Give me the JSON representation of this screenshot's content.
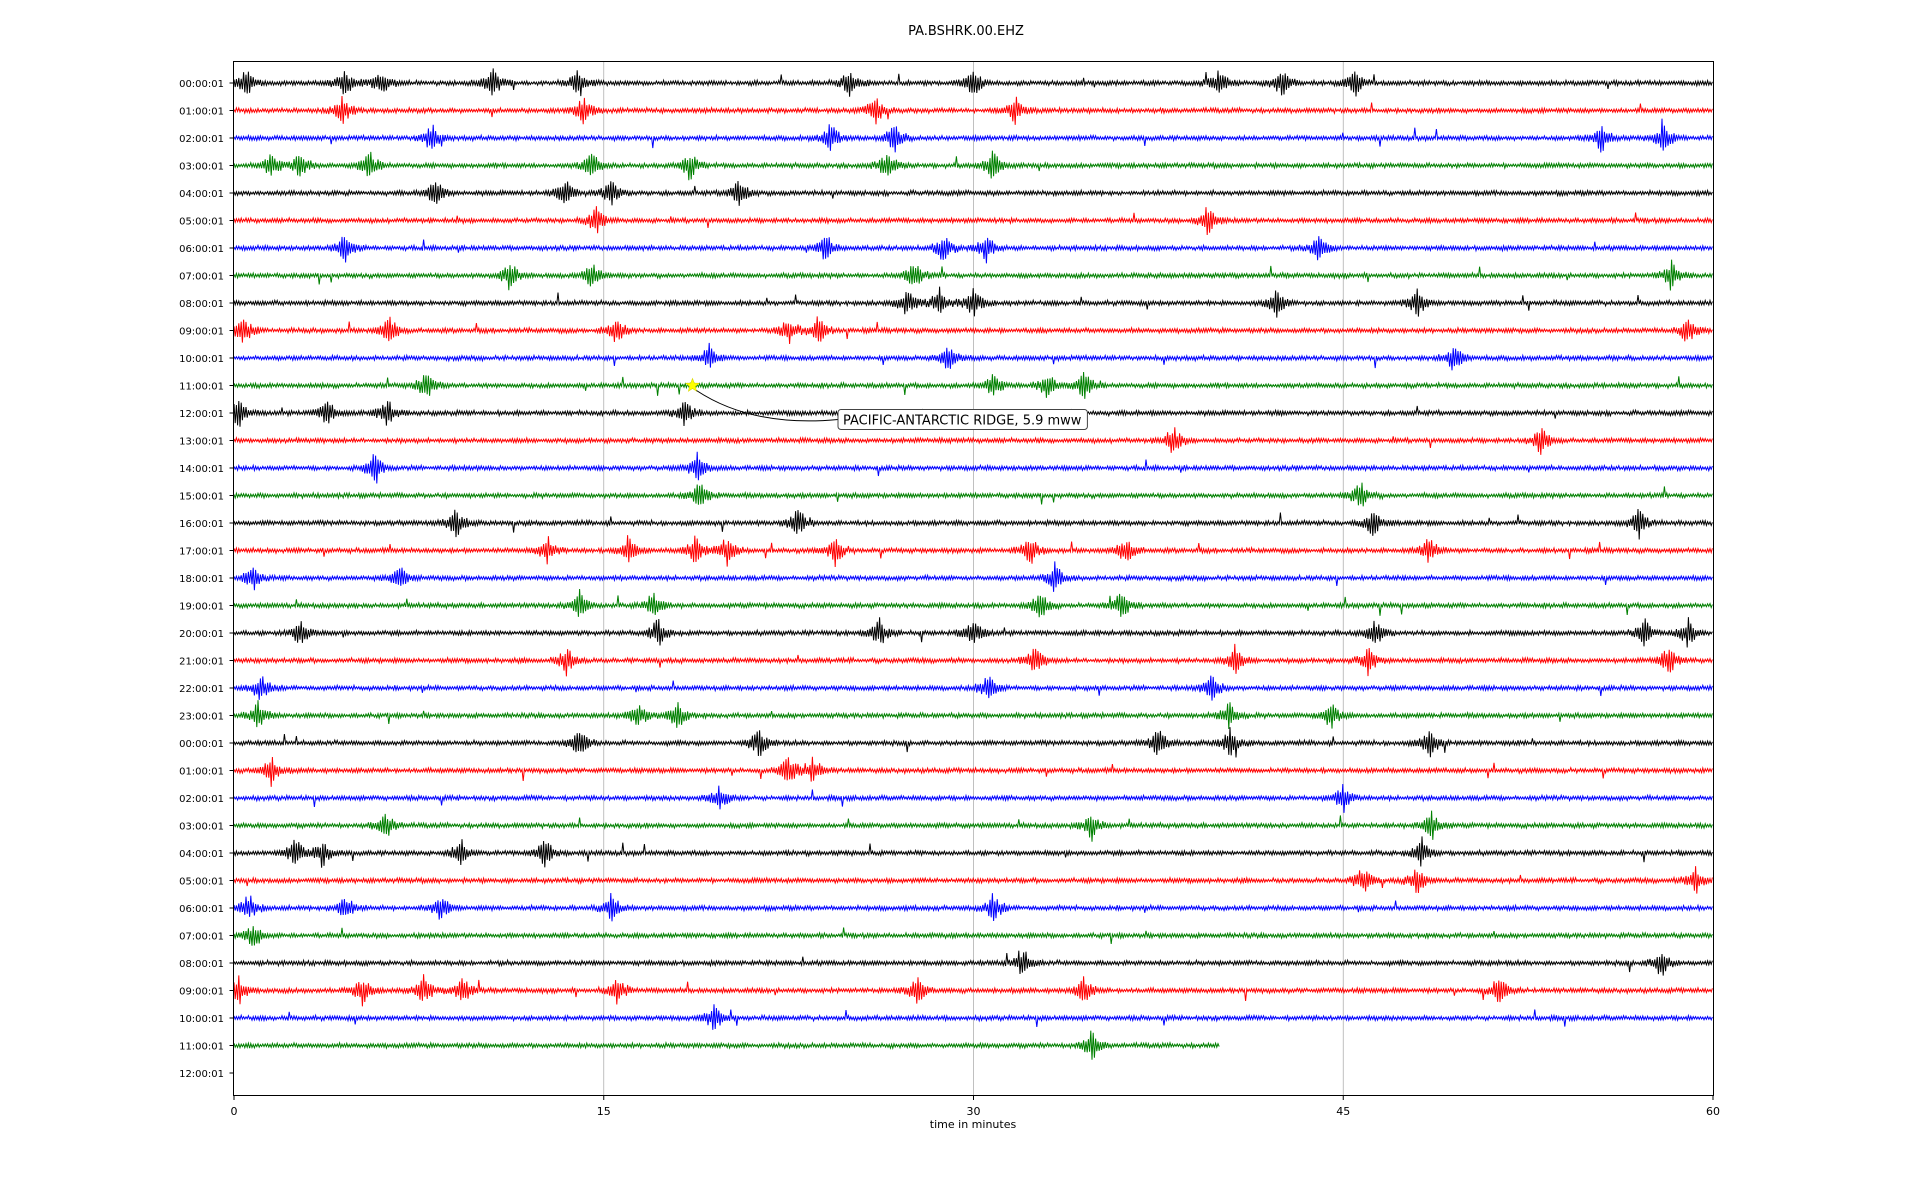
{
  "chart_data": {
    "type": "line",
    "title": "PA.BSHRK.00.EHZ",
    "xlabel": "time in minutes",
    "ylabel": "",
    "xlim": [
      0,
      60
    ],
    "x_ticks": [
      "0",
      "15",
      "30",
      "45",
      "60"
    ],
    "x_tick_values": [
      0,
      15,
      30,
      45,
      60
    ],
    "grid": "vertical lines at 15, 30, 45",
    "row_colors": [
      "#000000",
      "#ff0000",
      "#0000ff",
      "#008000"
    ],
    "row_labels": [
      "00:00:01",
      "01:00:01",
      "02:00:01",
      "03:00:01",
      "04:00:01",
      "05:00:01",
      "06:00:01",
      "07:00:01",
      "08:00:01",
      "09:00:01",
      "10:00:01",
      "11:00:01",
      "12:00:01",
      "13:00:01",
      "14:00:01",
      "15:00:01",
      "16:00:01",
      "17:00:01",
      "18:00:01",
      "19:00:01",
      "20:00:01",
      "21:00:01",
      "22:00:01",
      "23:00:01",
      "00:00:01",
      "01:00:01",
      "02:00:01",
      "03:00:01",
      "04:00:01",
      "05:00:01",
      "06:00:01",
      "07:00:01",
      "08:00:01",
      "09:00:01",
      "10:00:01",
      "11:00:01",
      "12:00:01"
    ],
    "trace_end_minutes": [
      60,
      60,
      60,
      60,
      60,
      60,
      60,
      60,
      60,
      60,
      60,
      60,
      60,
      60,
      60,
      60,
      60,
      60,
      60,
      60,
      60,
      60,
      60,
      60,
      60,
      60,
      60,
      60,
      60,
      60,
      60,
      60,
      60,
      60,
      60,
      40,
      0
    ],
    "bursts": [
      {
        "row": 0,
        "t": [
          0.5,
          4.5,
          6,
          10.5,
          14,
          25,
          30,
          40,
          42.5,
          45.5
        ]
      },
      {
        "row": 1,
        "t": [
          4.4,
          14.2,
          26,
          31.7
        ]
      },
      {
        "row": 2,
        "t": [
          8,
          24.2,
          26.8,
          55.5,
          58
        ]
      },
      {
        "row": 3,
        "t": [
          1.5,
          2.7,
          5.5,
          14.5,
          18.5,
          26.5,
          30.8
        ]
      },
      {
        "row": 4,
        "t": [
          8.2,
          13.5,
          15.3,
          20.5
        ]
      },
      {
        "row": 5,
        "t": [
          14.7,
          39.5
        ]
      },
      {
        "row": 6,
        "t": [
          4.5,
          24,
          28.8,
          30.5,
          44
        ]
      },
      {
        "row": 7,
        "t": [
          11.2,
          14.5,
          27.6,
          58.3
        ]
      },
      {
        "row": 8,
        "t": [
          27.3,
          28.6,
          30,
          42.3,
          48
        ]
      },
      {
        "row": 9,
        "t": [
          0.4,
          6.3,
          15.5,
          22.5,
          23.7,
          59
        ]
      },
      {
        "row": 10,
        "t": [
          19.3,
          29,
          49.5
        ]
      },
      {
        "row": 11,
        "t": [
          7.8,
          30.8,
          33,
          34.5
        ]
      },
      {
        "row": 12,
        "t": [
          0.2,
          3.8,
          6.2,
          18.3
        ]
      },
      {
        "row": 13,
        "t": [
          38.1,
          53
        ]
      },
      {
        "row": 14,
        "t": [
          5.7,
          18.8
        ]
      },
      {
        "row": 15,
        "t": [
          18.9,
          45.7
        ]
      },
      {
        "row": 16,
        "t": [
          9,
          22.9,
          46.2,
          57
        ]
      },
      {
        "row": 17,
        "t": [
          12.7,
          16,
          18.7,
          20,
          24.4,
          32.3,
          36.2,
          48.5
        ]
      },
      {
        "row": 18,
        "t": [
          0.8,
          6.7,
          33.3
        ]
      },
      {
        "row": 19,
        "t": [
          14,
          17,
          32.7,
          36
        ]
      },
      {
        "row": 20,
        "t": [
          2.7,
          17.2,
          26.2,
          30,
          46.3,
          57.2,
          59
        ]
      },
      {
        "row": 21,
        "t": [
          13.5,
          32.5,
          40.6,
          46,
          58.2
        ]
      },
      {
        "row": 22,
        "t": [
          1.1,
          30.6,
          39.7
        ]
      },
      {
        "row": 23,
        "t": [
          1,
          16.4,
          18,
          40.4,
          44.5
        ]
      },
      {
        "row": 24,
        "t": [
          14,
          21.3,
          37.5,
          40.4,
          48.5
        ]
      },
      {
        "row": 25,
        "t": [
          1.5,
          22.5,
          23.5
        ]
      },
      {
        "row": 26,
        "t": [
          19.7,
          45
        ]
      },
      {
        "row": 27,
        "t": [
          6.2,
          34.8,
          48.6
        ]
      },
      {
        "row": 28,
        "t": [
          2.5,
          3.6,
          9.2,
          12.6,
          48.2
        ]
      },
      {
        "row": 29,
        "t": [
          45.8,
          48,
          59.3
        ]
      },
      {
        "row": 30,
        "t": [
          0.6,
          4.5,
          8.4,
          15.3,
          30.8
        ]
      },
      {
        "row": 31,
        "t": [
          0.8
        ]
      },
      {
        "row": 32,
        "t": [
          32,
          57.9
        ]
      },
      {
        "row": 33,
        "t": [
          0.2,
          5.2,
          7.7,
          9.3,
          15.6,
          27.7,
          34.5,
          51.3
        ]
      },
      {
        "row": 34,
        "t": [
          19.5
        ]
      },
      {
        "row": 35,
        "t": [
          34.8
        ]
      }
    ],
    "events": [
      {
        "row": 11,
        "minute": 18.6,
        "marker": "star",
        "label": "PACIFIC-ANTARCTIC RIDGE, 5.9 mww"
      }
    ]
  }
}
